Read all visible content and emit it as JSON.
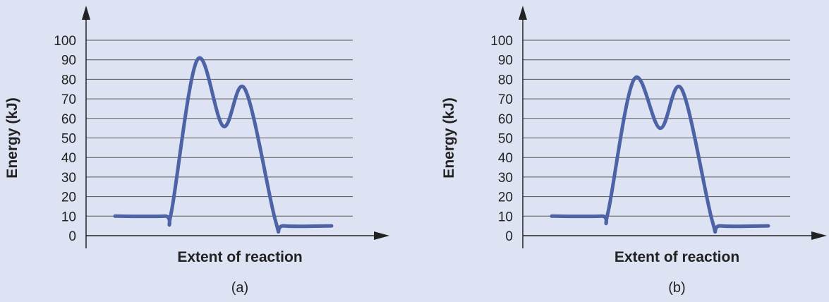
{
  "colors": {
    "background": "#dde3f2",
    "curve": "#4d63a6",
    "axis": "#222222",
    "grid": "#555555"
  },
  "chart_data": [
    {
      "type": "line",
      "caption": "(a)",
      "xlabel": "Extent of reaction",
      "ylabel": "Energy (kJ)",
      "ylim": [
        0,
        100
      ],
      "yticks": [
        "0",
        "10",
        "20",
        "30",
        "40",
        "50",
        "60",
        "70",
        "80",
        "90",
        "100"
      ],
      "grid": true,
      "x_tick_labels": false,
      "series": [
        {
          "points": [
            [
              0,
              10
            ],
            [
              0.23,
              10
            ],
            [
              0.26,
              12
            ],
            [
              0.38,
              90
            ],
            [
              0.5,
              56
            ],
            [
              0.6,
              75
            ],
            [
              0.74,
              8
            ],
            [
              0.78,
              5
            ],
            [
              1,
              5
            ]
          ]
        }
      ]
    },
    {
      "type": "line",
      "caption": "(b)",
      "xlabel": "Extent of reaction",
      "ylabel": "Energy (kJ)",
      "ylim": [
        0,
        100
      ],
      "yticks": [
        "0",
        "10",
        "20",
        "30",
        "40",
        "50",
        "60",
        "70",
        "80",
        "90",
        "100"
      ],
      "grid": true,
      "x_tick_labels": false,
      "series": [
        {
          "points": [
            [
              0,
              10
            ],
            [
              0.23,
              10
            ],
            [
              0.26,
              12
            ],
            [
              0.38,
              80
            ],
            [
              0.5,
              55
            ],
            [
              0.6,
              75
            ],
            [
              0.74,
              8
            ],
            [
              0.78,
              5
            ],
            [
              1,
              5
            ]
          ]
        }
      ]
    }
  ]
}
